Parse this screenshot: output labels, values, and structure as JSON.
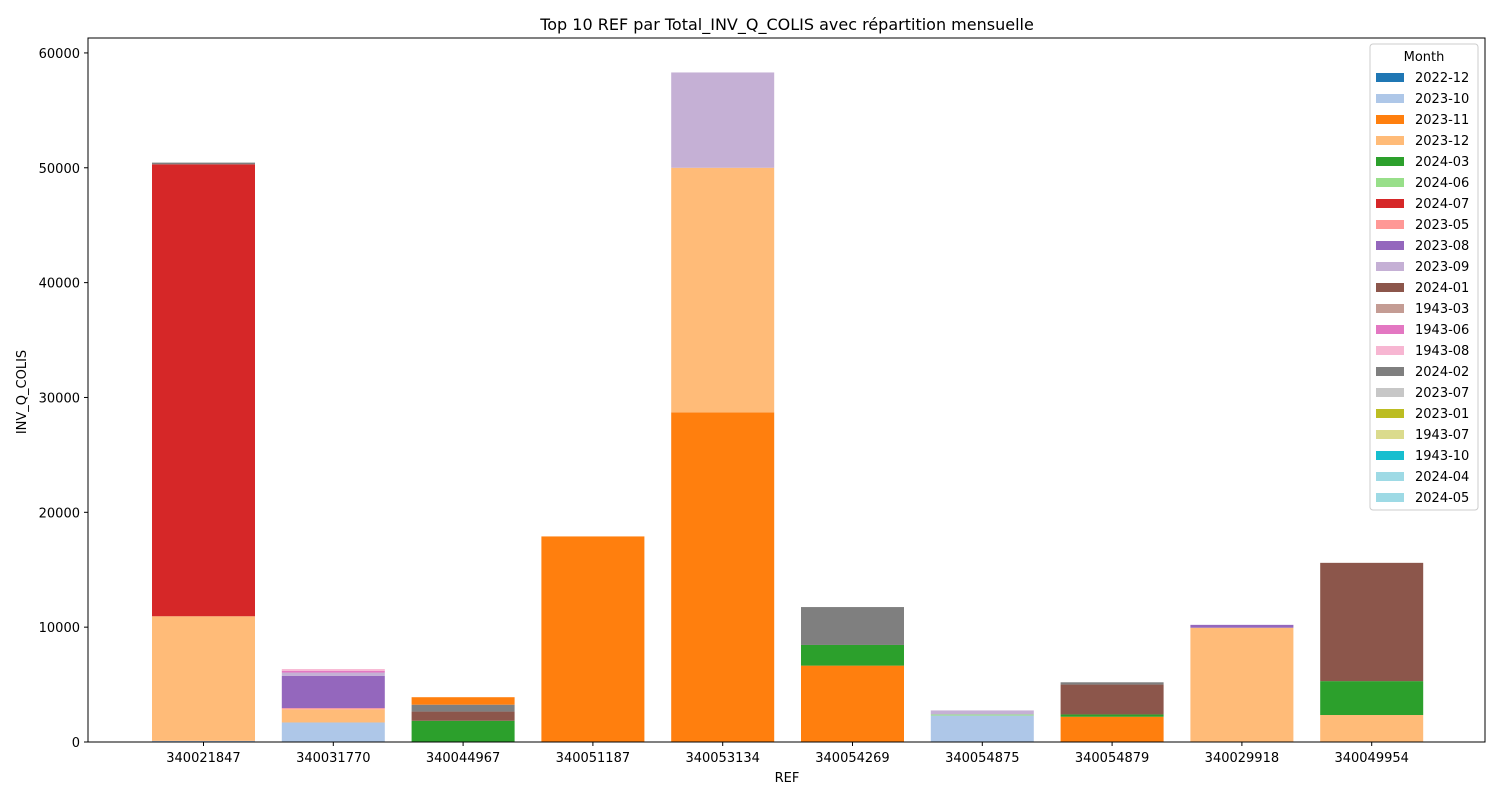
{
  "chart_data": {
    "type": "bar",
    "stacked": true,
    "title": "Top 10 REF par Total_INV_Q_COLIS avec répartition mensuelle",
    "xlabel": "REF",
    "ylabel": "INV_Q_COLIS",
    "ylim": [
      0,
      61300
    ],
    "yticks": [
      0,
      10000,
      20000,
      30000,
      40000,
      50000,
      60000
    ],
    "grid": false,
    "legend": {
      "title": "Month",
      "position": "top-right"
    },
    "categories": [
      "340021847",
      "340031770",
      "340044967",
      "340051187",
      "340053134",
      "340054269",
      "340054875",
      "340054879",
      "340029918",
      "340049954"
    ],
    "series": [
      {
        "name": "2022-12",
        "color": "#1f77b4",
        "values": [
          0,
          0,
          0,
          0,
          0,
          0,
          0,
          0,
          0,
          0
        ]
      },
      {
        "name": "2023-10",
        "color": "#aec7e8",
        "values": [
          100,
          1700,
          0,
          0,
          0,
          0,
          2300,
          0,
          0,
          0
        ]
      },
      {
        "name": "2023-11",
        "color": "#ff7f0e",
        "values": [
          0,
          0,
          0,
          17900,
          28700,
          6650,
          0,
          2200,
          0,
          0
        ]
      },
      {
        "name": "2023-12",
        "color": "#ffbb78",
        "values": [
          10850,
          1150,
          0,
          0,
          21300,
          0,
          0,
          0,
          9950,
          2350
        ]
      },
      {
        "name": "2024-03",
        "color": "#2ca02c",
        "values": [
          0,
          0,
          1850,
          0,
          0,
          1800,
          0,
          200,
          0,
          2950
        ]
      },
      {
        "name": "2024-06",
        "color": "#98df8a",
        "values": [
          0,
          0,
          0,
          0,
          0,
          0,
          100,
          0,
          0,
          0
        ]
      },
      {
        "name": "2024-07",
        "color": "#d62728",
        "values": [
          39350,
          0,
          0,
          0,
          0,
          0,
          0,
          0,
          0,
          0
        ]
      },
      {
        "name": "2023-05",
        "color": "#ff9896",
        "values": [
          0,
          100,
          0,
          0,
          0,
          0,
          0,
          0,
          0,
          0
        ]
      },
      {
        "name": "2023-08",
        "color": "#9467bd",
        "values": [
          0,
          2800,
          0,
          0,
          0,
          0,
          0,
          0,
          250,
          0
        ]
      },
      {
        "name": "2023-09",
        "color": "#c5b0d5",
        "values": [
          0,
          300,
          0,
          0,
          8300,
          0,
          350,
          0,
          0,
          0
        ]
      },
      {
        "name": "2024-01",
        "color": "#8c564b",
        "values": [
          0,
          0,
          800,
          0,
          0,
          0,
          0,
          2600,
          0,
          10300
        ]
      },
      {
        "name": "1943-03",
        "color": "#c49c94",
        "values": [
          0,
          0,
          0,
          0,
          0,
          0,
          0,
          0,
          0,
          0
        ]
      },
      {
        "name": "1943-06",
        "color": "#e377c2",
        "values": [
          0,
          150,
          0,
          0,
          0,
          0,
          0,
          0,
          0,
          0
        ]
      },
      {
        "name": "1943-08",
        "color": "#f7b6d2",
        "values": [
          0,
          150,
          0,
          0,
          0,
          0,
          0,
          0,
          0,
          0
        ]
      },
      {
        "name": "2024-02",
        "color": "#7f7f7f",
        "values": [
          150,
          0,
          600,
          0,
          0,
          3300,
          0,
          200,
          0,
          0
        ]
      },
      {
        "name": "2023-07",
        "color": "#c7c7c7",
        "values": [
          0,
          0,
          0,
          0,
          0,
          0,
          0,
          0,
          0,
          0
        ]
      },
      {
        "name": "2023-01",
        "color": "#bcbd22",
        "values": [
          0,
          0,
          0,
          0,
          0,
          0,
          0,
          0,
          0,
          0
        ]
      },
      {
        "name": "1943-07",
        "color": "#dbdb8d",
        "values": [
          0,
          0,
          0,
          0,
          0,
          0,
          0,
          0,
          0,
          0
        ]
      },
      {
        "name": "1943-10",
        "color": "#17becf",
        "values": [
          0,
          0,
          0,
          0,
          0,
          0,
          0,
          0,
          0,
          0
        ]
      },
      {
        "name": "2024-04",
        "color": "#9edae5",
        "values": [
          0,
          0,
          0,
          0,
          0,
          0,
          0,
          0,
          0,
          0
        ]
      },
      {
        "name": "2024-05",
        "color": "#9edae5",
        "values": [
          0,
          0,
          0,
          0,
          0,
          0,
          0,
          0,
          0,
          0
        ]
      }
    ],
    "extra_top": [
      0,
      0,
      650,
      0,
      0,
      0,
      0,
      0,
      0,
      0
    ]
  }
}
